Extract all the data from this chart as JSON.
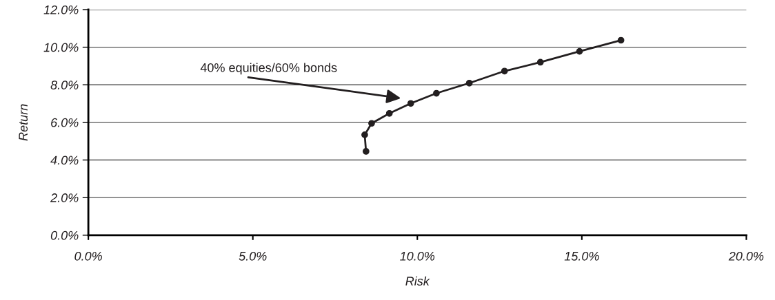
{
  "chart_data": {
    "type": "line",
    "xlabel": "Risk",
    "ylabel": "Return",
    "x": [
      8.44,
      8.4,
      8.61,
      9.15,
      9.8,
      10.58,
      11.58,
      12.65,
      13.74,
      14.93,
      16.19
    ],
    "series": [
      {
        "color": "#231f20",
        "values": [
          4.46,
          5.34,
          5.95,
          6.48,
          7.01,
          7.55,
          8.09,
          8.73,
          9.2,
          9.78,
          10.37
        ]
      }
    ],
    "marker": "circle",
    "line_style": "solid",
    "grid": "y",
    "xlim": [
      0,
      20
    ],
    "ylim": [
      0,
      12
    ],
    "xticks": [
      {
        "value": 0,
        "label": "0.0%"
      },
      {
        "value": 5,
        "label": "5.0%"
      },
      {
        "value": 10,
        "label": "10.0%"
      },
      {
        "value": 15,
        "label": "15.0%"
      },
      {
        "value": 20,
        "label": "20.0%"
      }
    ],
    "yticks": [
      {
        "value": 0,
        "label": "0.0%"
      },
      {
        "value": 2,
        "label": "2.0%"
      },
      {
        "value": 4,
        "label": "4.0%"
      },
      {
        "value": 6,
        "label": "6.0%"
      },
      {
        "value": 8,
        "label": "8.0%"
      },
      {
        "value": 10,
        "label": "10.0%"
      },
      {
        "value": 12,
        "label": "12.0%"
      }
    ],
    "annotations": [
      "40% equities/60% bonds"
    ]
  }
}
